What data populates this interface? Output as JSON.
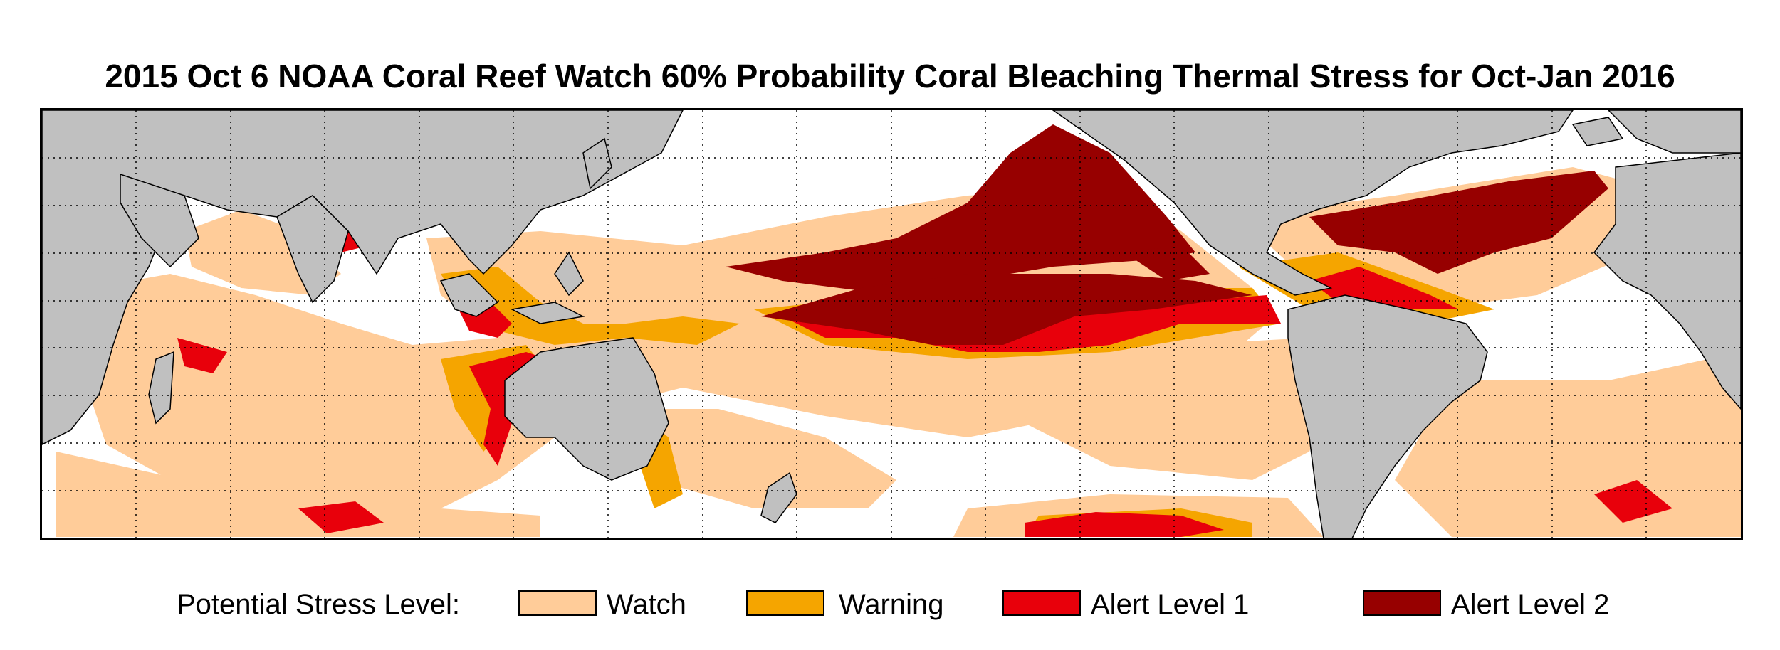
{
  "title": "2015 Oct 6 NOAA Coral Reef Watch 60% Probability Coral Bleaching Thermal Stress for Oct-Jan 2016",
  "colors": {
    "land": "#c0c0c0",
    "ocean": "#ffffff",
    "watch": "#ffcc99",
    "warning": "#f5a500",
    "alert1": "#e8000b",
    "alert2": "#970000",
    "grid": "#000000"
  },
  "map": {
    "lon_range": [
      20,
      380
    ],
    "lat_range": [
      -45,
      45
    ],
    "grid": "dotted",
    "grid_lon_step": 20,
    "grid_lat_step": 10
  },
  "legend": {
    "label": "Potential Stress Level:",
    "items": [
      {
        "key": "watch",
        "label": "Watch",
        "color": "#ffcc99"
      },
      {
        "key": "warning",
        "label": "Warning",
        "color": "#f5a500"
      },
      {
        "key": "alert1",
        "label": "Alert Level 1",
        "color": "#e8000b"
      },
      {
        "key": "alert2",
        "label": "Alert Level 2",
        "color": "#970000"
      }
    ]
  }
}
